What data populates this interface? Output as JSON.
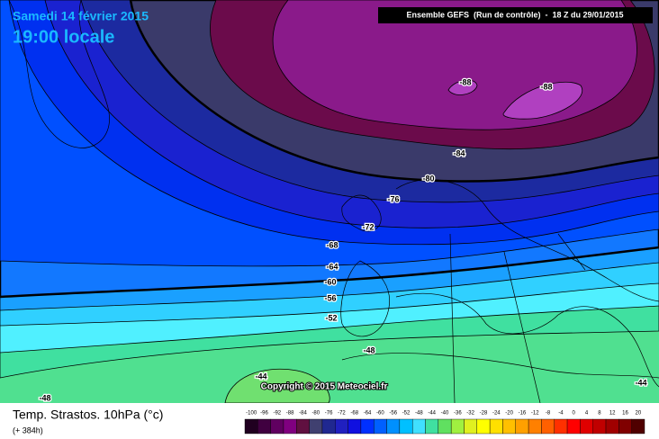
{
  "header": {
    "date": "Samedi 14 février 2015",
    "time": "19:00 locale",
    "run": "Ensemble GEFS  (Run de contrôle)  -  18 Z du 29/01/2015"
  },
  "contours": [
    "-88",
    "-88",
    "-84",
    "-80",
    "-76",
    "-72",
    "-68",
    "-64",
    "-60",
    "-56",
    "-52",
    "-48",
    "-44",
    "-44",
    "-48"
  ],
  "copyright": "Copyright © 2015 Meteociel.fr",
  "footer": {
    "title": "Temp. Strastos. 10hPa (°c)",
    "lead": "(+ 384h)"
  },
  "legend": {
    "labels": [
      "-100",
      "-96",
      "-92",
      "-88",
      "-84",
      "-80",
      "-76",
      "-72",
      "-68",
      "-64",
      "-60",
      "-56",
      "-52",
      "-48",
      "-44",
      "-40",
      "-36",
      "-32",
      "-28",
      "-24",
      "-20",
      "-16",
      "-12",
      "-8",
      "-4",
      "0",
      "4",
      "8",
      "12",
      "16",
      "20"
    ],
    "colors": [
      "#200020",
      "#400040",
      "#600060",
      "#800080",
      "#601040",
      "#404070",
      "#202890",
      "#2020c0",
      "#1010e0",
      "#0030ff",
      "#0060ff",
      "#0090ff",
      "#00c0ff",
      "#40e0ff",
      "#40e0a0",
      "#60e060",
      "#a0f040",
      "#e0f020",
      "#ffff00",
      "#ffe000",
      "#ffc000",
      "#ffa000",
      "#ff8000",
      "#ff6000",
      "#ff3000",
      "#ff0000",
      "#e00000",
      "#c00000",
      "#a00000",
      "#800000",
      "#500000"
    ]
  }
}
